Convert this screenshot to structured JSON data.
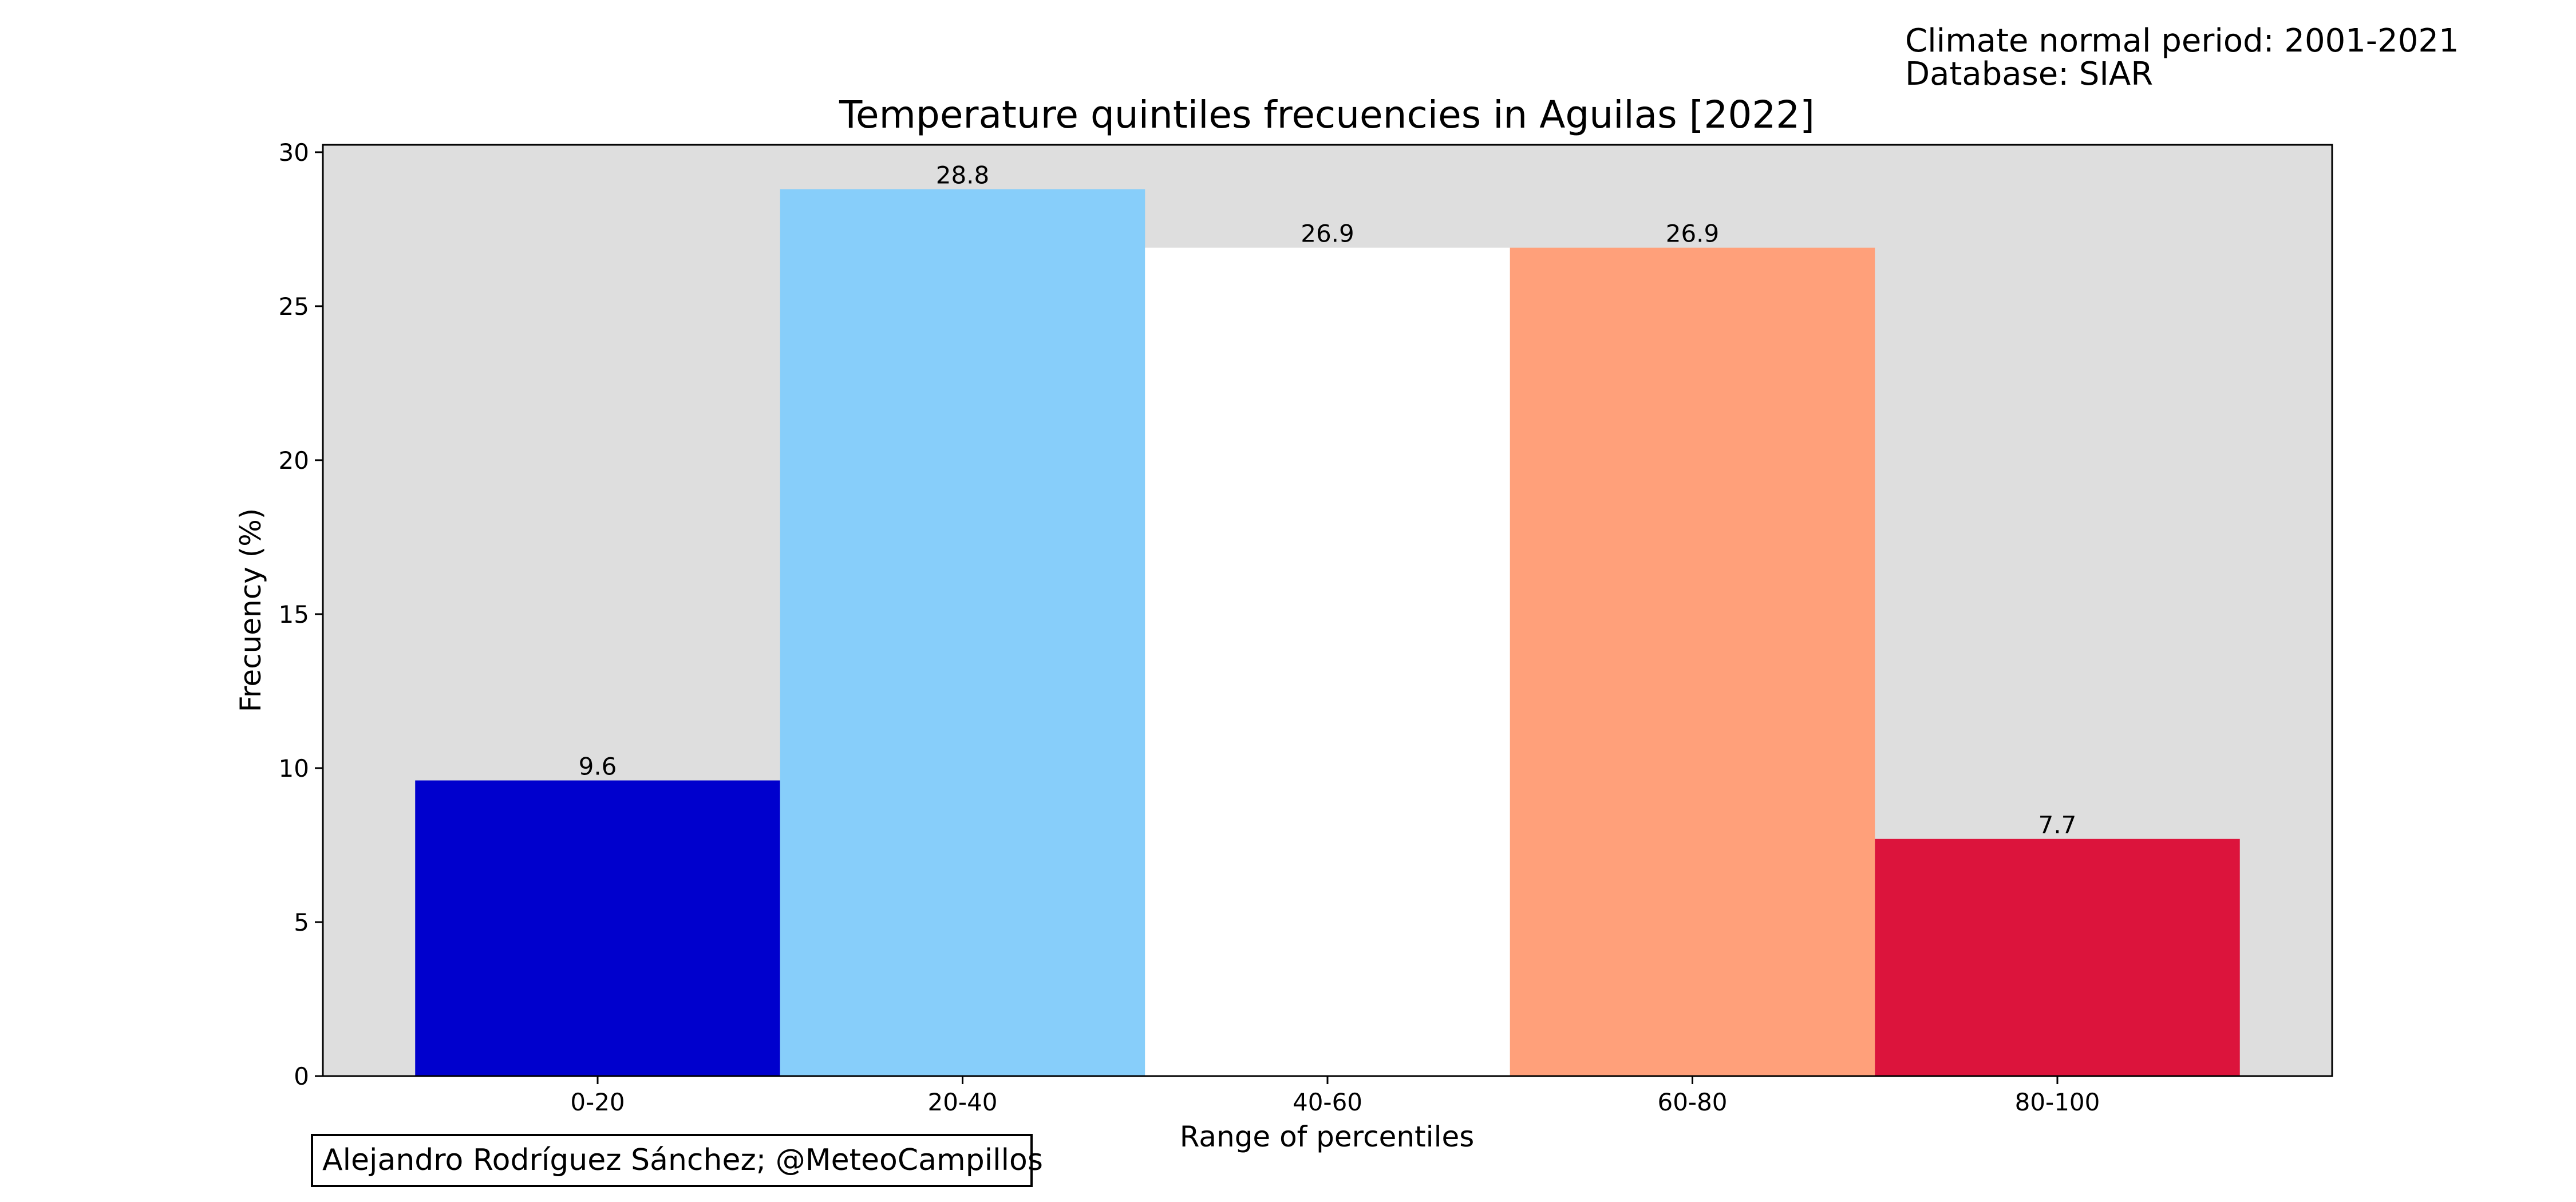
{
  "notes": {
    "climate_period": "Climate normal period: 2001-2021",
    "database": "Database: SIAR"
  },
  "credit": "Alejandro Rodríguez Sánchez; @MeteoCampillos",
  "colors": {
    "plot_background": "#DEDEDE",
    "bars": [
      "#0000CD",
      "#87CEFA",
      "#FFFFFF",
      "#FFA07A",
      "#DC143C"
    ]
  },
  "chart_data": {
    "type": "bar",
    "title": "Temperature quintiles frecuencies in Aguilas [2022]",
    "xlabel": "Range of percentiles",
    "ylabel": "Frecuency (%)",
    "categories": [
      "0-20",
      "20-40",
      "40-60",
      "60-80",
      "80-100"
    ],
    "values": [
      9.6,
      28.8,
      26.9,
      26.9,
      7.7
    ],
    "data_labels": [
      "9.6",
      "28.8",
      "26.9",
      "26.9",
      "7.7"
    ],
    "ylim": [
      0,
      30.24
    ],
    "yticks": [
      0,
      5,
      10,
      15,
      20,
      25,
      30
    ],
    "ytick_labels": [
      "0",
      "5",
      "10",
      "15",
      "20",
      "25",
      "30"
    ],
    "grid": false,
    "legend": "none"
  }
}
